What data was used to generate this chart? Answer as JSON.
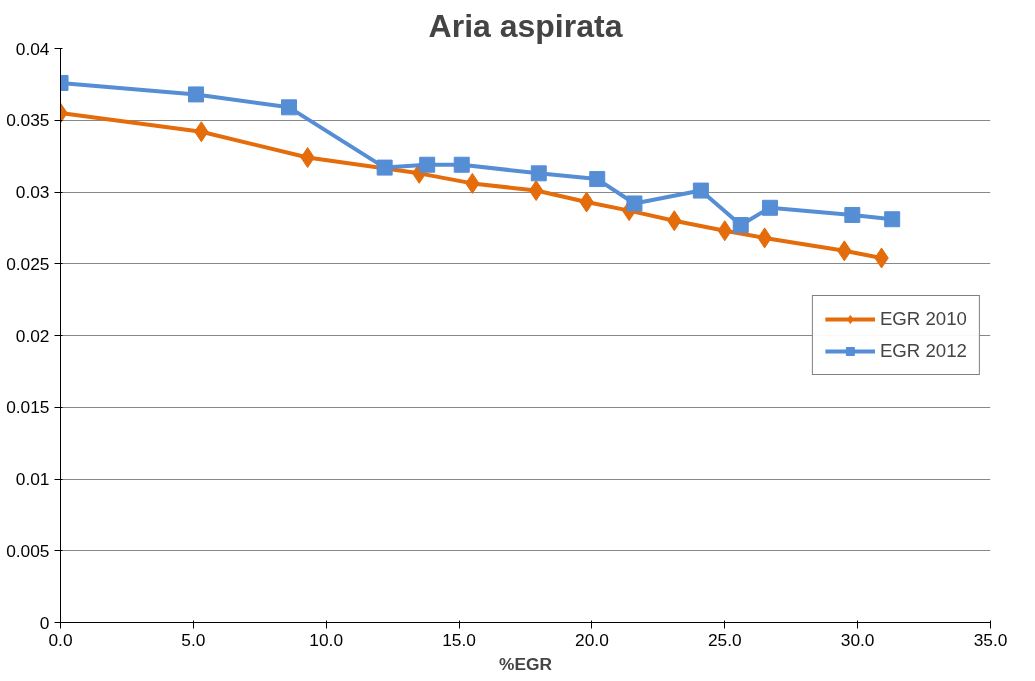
{
  "chart_data": {
    "type": "line",
    "title": "Aria aspirata",
    "xlabel": "%EGR",
    "xlim": [
      0,
      35
    ],
    "xticks": [
      {
        "value": 0,
        "label": "0.0"
      },
      {
        "value": 5,
        "label": "5.0"
      },
      {
        "value": 10,
        "label": "10.0"
      },
      {
        "value": 15,
        "label": "15.0"
      },
      {
        "value": 20,
        "label": "20.0"
      },
      {
        "value": 25,
        "label": "25.0"
      },
      {
        "value": 30,
        "label": "30.0"
      },
      {
        "value": 35,
        "label": "35.0"
      }
    ],
    "ylim": [
      0,
      0.04
    ],
    "yticks": [
      0,
      0.005,
      0.01,
      0.015,
      0.02,
      0.025,
      0.03,
      0.035,
      0.04
    ],
    "grid": "y",
    "legend": "right",
    "series": [
      {
        "name": "EGR 2010",
        "color": "#e46c0a",
        "marker": "diamond",
        "x": [
          0.0,
          5.3,
          9.3,
          13.5,
          15.5,
          17.9,
          19.8,
          21.4,
          23.1,
          25.0,
          26.5,
          29.5,
          30.9
        ],
        "values": [
          0.0355,
          0.0342,
          0.0324,
          0.0313,
          0.0306,
          0.0301,
          0.0293,
          0.0287,
          0.028,
          0.0273,
          0.0268,
          0.0259,
          0.0254
        ]
      },
      {
        "name": "EGR 2012",
        "color": "#558ed5",
        "marker": "square",
        "x": [
          0.0,
          5.1,
          8.6,
          12.2,
          13.8,
          15.1,
          18.0,
          20.2,
          21.6,
          24.1,
          25.6,
          26.7,
          29.8,
          31.3
        ],
        "values": [
          0.0376,
          0.0368,
          0.0359,
          0.0317,
          0.0319,
          0.0319,
          0.0313,
          0.0309,
          0.0292,
          0.0301,
          0.0277,
          0.0289,
          0.0284,
          0.0281
        ]
      }
    ]
  }
}
